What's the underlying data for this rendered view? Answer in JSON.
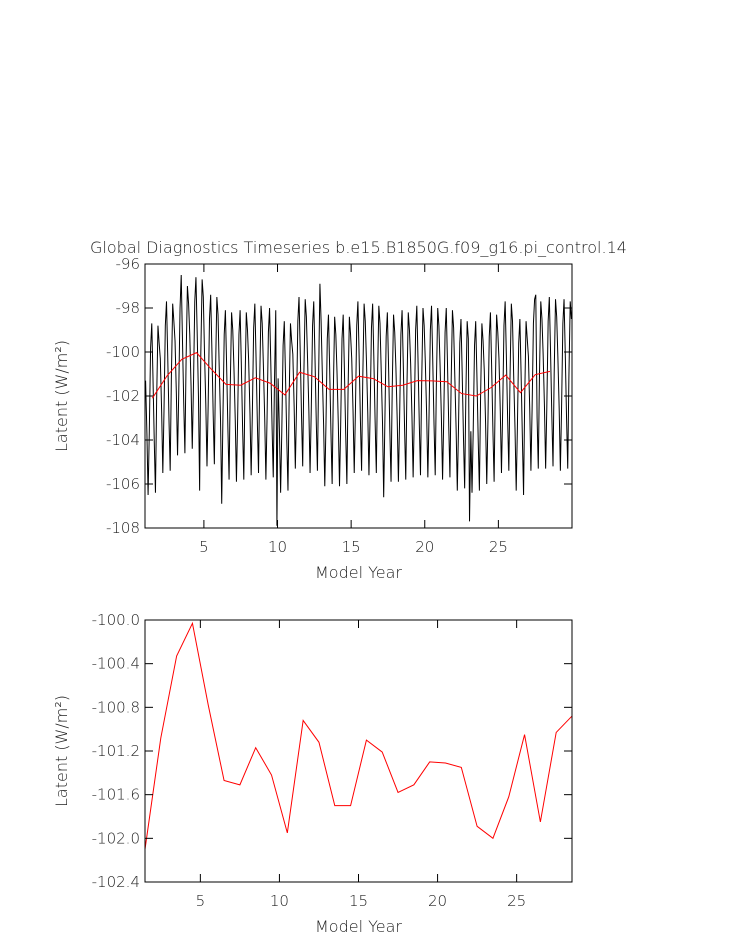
{
  "chart_data": [
    {
      "type": "line",
      "title": "Global Diagnostics Timeseries b.e15.B1850G.f09_g16.pi_control.14",
      "xlabel": "Model Year",
      "ylabel": "Latent (W/m²)",
      "xlim": [
        1,
        30
      ],
      "ylim": [
        -108,
        -96
      ],
      "xticks": [
        5,
        10,
        15,
        20,
        25
      ],
      "yticks": [
        -96,
        -98,
        -100,
        -102,
        -104,
        -106,
        -108
      ],
      "series": [
        {
          "color": "#000000",
          "x": [
            1.04,
            1.13,
            1.21,
            1.29,
            1.38,
            1.46,
            1.54,
            1.63,
            1.71,
            1.79,
            1.88,
            1.96,
            2.04,
            2.13,
            2.21,
            2.29,
            2.38,
            2.46,
            2.54,
            2.63,
            2.71,
            2.79,
            2.88,
            2.96,
            3.04,
            3.13,
            3.21,
            3.29,
            3.38,
            3.46,
            3.54,
            3.63,
            3.71,
            3.79,
            3.88,
            3.96,
            4.04,
            4.13,
            4.21,
            4.29,
            4.38,
            4.46,
            4.54,
            4.63,
            4.71,
            4.79,
            4.88,
            4.96,
            5.04,
            5.13,
            5.21,
            5.29,
            5.38,
            5.46,
            5.54,
            5.63,
            5.71,
            5.79,
            5.88,
            5.96,
            6.04,
            6.13,
            6.21,
            6.29,
            6.38,
            6.46,
            6.54,
            6.63,
            6.71,
            6.79,
            6.88,
            6.96,
            7.04,
            7.13,
            7.21,
            7.29,
            7.38,
            7.46,
            7.54,
            7.63,
            7.71,
            7.79,
            7.88,
            7.96,
            8.04,
            8.13,
            8.21,
            8.29,
            8.38,
            8.46,
            8.54,
            8.63,
            8.71,
            8.79,
            8.88,
            8.96,
            9.04,
            9.13,
            9.21,
            9.29,
            9.38,
            9.46,
            9.54,
            9.63,
            9.71,
            9.79,
            9.88,
            9.96,
            10.04,
            10.13,
            10.21,
            10.29,
            10.38,
            10.46,
            10.54,
            10.63,
            10.71,
            10.79,
            10.88,
            10.96,
            11.04,
            11.13,
            11.21,
            11.29,
            11.38,
            11.46,
            11.54,
            11.63,
            11.71,
            11.79,
            11.88,
            11.96,
            12.04,
            12.13,
            12.21,
            12.29,
            12.38,
            12.46,
            12.54,
            12.63,
            12.71,
            12.79,
            12.88,
            12.96,
            13.04,
            13.13,
            13.21,
            13.29,
            13.38,
            13.46,
            13.54,
            13.63,
            13.71,
            13.79,
            13.88,
            13.96,
            14.04,
            14.13,
            14.21,
            14.29,
            14.38,
            14.46,
            14.54,
            14.63,
            14.71,
            14.79,
            14.88,
            14.96,
            15.04,
            15.13,
            15.21,
            15.29,
            15.38,
            15.46,
            15.54,
            15.63,
            15.71,
            15.79,
            15.88,
            15.96,
            16.04,
            16.13,
            16.21,
            16.29,
            16.38,
            16.46,
            16.54,
            16.63,
            16.71,
            16.79,
            16.88,
            16.96,
            17.04,
            17.13,
            17.21,
            17.29,
            17.38,
            17.46,
            17.54,
            17.63,
            17.71,
            17.79,
            17.88,
            17.96,
            18.04,
            18.13,
            18.21,
            18.29,
            18.38,
            18.46,
            18.54,
            18.63,
            18.71,
            18.79,
            18.88,
            18.96,
            19.04,
            19.13,
            19.21,
            19.29,
            19.38,
            19.46,
            19.54,
            19.63,
            19.71,
            19.79,
            19.88,
            19.96,
            20.04,
            20.13,
            20.21,
            20.29,
            20.38,
            20.46,
            20.54,
            20.63,
            20.71,
            20.79,
            20.88,
            20.96,
            21.04,
            21.13,
            21.21,
            21.29,
            21.38,
            21.46,
            21.54,
            21.63,
            21.71,
            21.79,
            21.88,
            21.96,
            22.04,
            22.13,
            22.21,
            22.29,
            22.38,
            22.46,
            22.54,
            22.63,
            22.71,
            22.79,
            22.88,
            22.96,
            23.04,
            23.13,
            23.21,
            23.29,
            23.38,
            23.46,
            23.54,
            23.63,
            23.71,
            23.79,
            23.88,
            23.96,
            24.04,
            24.13,
            24.21,
            24.29,
            24.38,
            24.46,
            24.54,
            24.63,
            24.71,
            24.79,
            24.88,
            24.96,
            25.04,
            25.13,
            25.21,
            25.29,
            25.38,
            25.46,
            25.54,
            25.63,
            25.71,
            25.79,
            25.88,
            25.96,
            26.04,
            26.13,
            26.21,
            26.29,
            26.38,
            26.46,
            26.54,
            26.63,
            26.71,
            26.79,
            26.88,
            26.96,
            27.04,
            27.13,
            27.21,
            27.29,
            27.38,
            27.46,
            27.54,
            27.63,
            27.71,
            27.79,
            27.88,
            27.96,
            28.04,
            28.13,
            28.21,
            28.29,
            28.38,
            28.46,
            28.54,
            28.63,
            28.71,
            28.79,
            28.88,
            28.96,
            29.04,
            29.13,
            29.21,
            29.29,
            29.38,
            29.46,
            29.54,
            29.63,
            29.71,
            29.79,
            29.88,
            29.96
          ],
          "values": [
            -101.3,
            -103.7,
            -106.5,
            -103.7,
            -99.8,
            -98.7,
            -101.1,
            -104.1,
            -106.4,
            -102.2,
            -98.8,
            -99.6,
            -100.3,
            -102.7,
            -105.5,
            -102.7,
            -98.8,
            -97.7,
            -100.1,
            -103.1,
            -105.4,
            -101.2,
            -97.8,
            -98.6,
            -99.5,
            -101.9,
            -104.7,
            -101.9,
            -98.0,
            -96.5,
            -99.3,
            -102.3,
            -104.6,
            -100.4,
            -97.0,
            -97.8,
            -99.2,
            -101.6,
            -104.4,
            -101.6,
            -97.7,
            -96.6,
            -99.0,
            -102.0,
            -106.3,
            -100.1,
            -96.7,
            -97.5,
            -100.0,
            -102.4,
            -105.2,
            -102.4,
            -98.5,
            -97.4,
            -99.8,
            -102.8,
            -105.1,
            -100.9,
            -97.5,
            -98.3,
            -100.7,
            -103.1,
            -106.9,
            -103.1,
            -99.2,
            -98.1,
            -100.5,
            -103.5,
            -105.8,
            -101.6,
            -98.2,
            -99.0,
            -100.7,
            -103.1,
            -105.9,
            -103.1,
            -99.2,
            -98.1,
            -100.5,
            -103.5,
            -105.8,
            -101.6,
            -98.2,
            -99.0,
            -100.4,
            -102.8,
            -105.6,
            -102.8,
            -98.9,
            -97.8,
            -100.2,
            -103.2,
            -105.5,
            -101.3,
            -97.9,
            -98.7,
            -100.6,
            -103.0,
            -105.8,
            -103.0,
            -99.1,
            -98.0,
            -100.4,
            -103.4,
            -105.7,
            -101.5,
            -98.1,
            -107.9,
            -101.2,
            -103.6,
            -106.4,
            -103.6,
            -99.7,
            -98.6,
            -101.0,
            -104.0,
            -106.3,
            -102.1,
            -98.7,
            -99.5,
            -100.1,
            -102.5,
            -105.3,
            -102.5,
            -98.6,
            -97.5,
            -99.9,
            -102.9,
            -105.2,
            -101.0,
            -97.6,
            -98.4,
            -100.3,
            -102.7,
            -105.5,
            -102.7,
            -98.8,
            -97.7,
            -100.1,
            -103.1,
            -105.4,
            -101.2,
            -96.9,
            -98.6,
            -100.9,
            -103.3,
            -106.1,
            -103.3,
            -99.4,
            -98.3,
            -100.7,
            -103.7,
            -106.0,
            -101.8,
            -98.4,
            -99.2,
            -100.9,
            -103.3,
            -106.1,
            -103.3,
            -99.4,
            -98.3,
            -100.7,
            -103.7,
            -106.0,
            -101.8,
            -98.4,
            -99.2,
            -100.3,
            -102.7,
            -105.5,
            -102.7,
            -98.8,
            -97.7,
            -100.1,
            -103.1,
            -105.4,
            -101.2,
            -97.8,
            -98.6,
            -100.4,
            -102.8,
            -105.6,
            -102.8,
            -98.9,
            -97.8,
            -100.2,
            -103.2,
            -105.5,
            -101.3,
            -97.9,
            -98.7,
            -100.8,
            -103.2,
            -106.6,
            -103.2,
            -99.3,
            -98.2,
            -100.6,
            -103.6,
            -105.9,
            -101.7,
            -98.3,
            -99.1,
            -100.7,
            -103.1,
            -105.9,
            -103.1,
            -99.2,
            -98.1,
            -100.5,
            -103.5,
            -105.8,
            -101.6,
            -98.2,
            -99.0,
            -100.5,
            -102.9,
            -105.7,
            -102.9,
            -99.0,
            -97.9,
            -100.3,
            -103.3,
            -105.6,
            -101.4,
            -98.0,
            -98.8,
            -100.5,
            -102.9,
            -105.7,
            -102.9,
            -99.0,
            -97.9,
            -100.3,
            -103.3,
            -105.6,
            -101.4,
            -98.0,
            -98.8,
            -100.6,
            -103.0,
            -105.8,
            -103.0,
            -99.1,
            -98.0,
            -100.4,
            -103.4,
            -105.7,
            -101.5,
            -98.1,
            -98.9,
            -101.1,
            -103.5,
            -106.3,
            -103.5,
            -99.6,
            -98.5,
            -100.9,
            -103.9,
            -106.2,
            -102.0,
            -98.6,
            -99.4,
            -107.7,
            -103.6,
            -106.4,
            -103.6,
            -99.7,
            -98.6,
            -101.0,
            -104.0,
            -106.3,
            -102.1,
            -98.7,
            -99.5,
            -100.8,
            -103.2,
            -106.0,
            -103.2,
            -99.3,
            -98.2,
            -100.6,
            -103.6,
            -105.9,
            -101.7,
            -98.3,
            -99.1,
            -100.3,
            -102.7,
            -105.5,
            -102.7,
            -98.8,
            -97.7,
            -100.1,
            -103.1,
            -105.4,
            -101.2,
            -97.8,
            -98.6,
            -101.1,
            -103.5,
            -106.3,
            -103.5,
            -99.6,
            -98.5,
            -100.9,
            -103.9,
            -106.5,
            -102.0,
            -98.6,
            -99.4,
            -100.2,
            -102.6,
            -105.4,
            -102.6,
            -98.7,
            -97.6,
            -97.4,
            -103.0,
            -105.3,
            -101.1,
            -97.7,
            -98.5,
            -100.1,
            -102.5,
            -105.3,
            -102.5,
            -98.6,
            -97.5,
            -99.9,
            -102.9,
            -105.2,
            -101.0,
            -97.6,
            -98.4,
            -100.2,
            -102.6,
            -105.4,
            -102.6,
            -98.7,
            -97.6,
            -100.0,
            -103.0,
            -105.3,
            -101.1,
            -97.7,
            -98.5
          ]
        },
        {
          "color": "#ff0000",
          "x": [
            1.5,
            2.5,
            3.5,
            4.5,
            5.5,
            6.5,
            7.5,
            8.5,
            9.5,
            10.5,
            11.5,
            12.5,
            13.5,
            14.5,
            15.5,
            16.5,
            17.5,
            18.5,
            19.5,
            20.5,
            21.5,
            22.5,
            23.5,
            24.5,
            25.5,
            26.5,
            27.5,
            28.5
          ],
          "values": [
            -102.1,
            -101.08,
            -100.33,
            -100.03,
            -100.78,
            -101.47,
            -101.51,
            -101.17,
            -101.42,
            -101.95,
            -100.92,
            -101.12,
            -101.7,
            -101.7,
            -101.1,
            -101.21,
            -101.58,
            -101.51,
            -101.3,
            -101.31,
            -101.35,
            -101.89,
            -102.0,
            -101.62,
            -101.05,
            -101.85,
            -101.03,
            -100.88
          ]
        }
      ]
    },
    {
      "type": "line",
      "xlabel": "Model Year",
      "ylabel": "Latent (W/m²)",
      "xlim": [
        1.5,
        28.5
      ],
      "ylim": [
        -102.4,
        -100
      ],
      "xticks": [
        5,
        10,
        15,
        20,
        25
      ],
      "yticks": [
        {
          "value": -100,
          "label": "-100.0"
        },
        -100.4,
        -100.8,
        -101.2,
        -101.6,
        {
          "value": -102,
          "label": "-102.0"
        },
        -102.4
      ],
      "series": [
        {
          "color": "#ff0000",
          "x": [
            1.5,
            2.5,
            3.5,
            4.5,
            5.5,
            6.5,
            7.5,
            8.5,
            9.5,
            10.5,
            11.5,
            12.5,
            13.5,
            14.5,
            15.5,
            16.5,
            17.5,
            18.5,
            19.5,
            20.5,
            21.5,
            22.5,
            23.5,
            24.5,
            25.5,
            26.5,
            27.5,
            28.5
          ],
          "values": [
            -102.1,
            -101.08,
            -100.33,
            -100.03,
            -100.78,
            -101.47,
            -101.51,
            -101.17,
            -101.42,
            -101.95,
            -100.92,
            -101.12,
            -101.7,
            -101.7,
            -101.1,
            -101.21,
            -101.58,
            -101.51,
            -101.3,
            -101.31,
            -101.35,
            -101.89,
            -102.0,
            -101.62,
            -101.05,
            -101.85,
            -101.03,
            -100.88
          ]
        }
      ]
    }
  ]
}
